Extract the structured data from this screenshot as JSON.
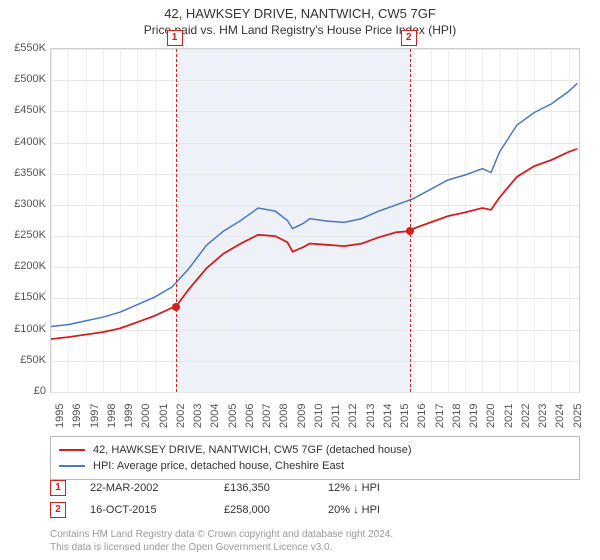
{
  "title": {
    "address": "42, HAWKSEY DRIVE, NANTWICH, CW5 7GF",
    "subtitle": "Price paid vs. HM Land Registry's House Price Index (HPI)"
  },
  "chart": {
    "type": "line",
    "background_color": "#ffffff",
    "grid_color": "#e8e8e8",
    "shaded_color": "#eef2f8",
    "border_color": "#d0d0d0",
    "x_range": [
      1995,
      2025.6
    ],
    "y_range": [
      0,
      550000
    ],
    "y_ticks": [
      0,
      50000,
      100000,
      150000,
      200000,
      250000,
      300000,
      350000,
      400000,
      450000,
      500000,
      550000
    ],
    "y_tick_labels": [
      "£0",
      "£50K",
      "£100K",
      "£150K",
      "£200K",
      "£250K",
      "£300K",
      "£350K",
      "£400K",
      "£450K",
      "£500K",
      "£550K"
    ],
    "x_ticks": [
      1995,
      1996,
      1997,
      1998,
      1999,
      2000,
      2001,
      2002,
      2003,
      2004,
      2005,
      2006,
      2007,
      2008,
      2009,
      2010,
      2011,
      2012,
      2013,
      2014,
      2015,
      2016,
      2017,
      2018,
      2019,
      2020,
      2021,
      2022,
      2023,
      2024,
      2025
    ],
    "label_fontsize": 11,
    "label_color": "#555555",
    "shaded_band": {
      "x_start": 2002.22,
      "x_end": 2015.79
    },
    "series": [
      {
        "name": "property",
        "label": "42, HAWKSEY DRIVE, NANTWICH, CW5 7GF (detached house)",
        "color": "#d21f1f",
        "line_width": 1.8,
        "points": [
          [
            1995,
            85000
          ],
          [
            1996,
            88000
          ],
          [
            1997,
            92000
          ],
          [
            1998,
            96000
          ],
          [
            1999,
            102000
          ],
          [
            2000,
            112000
          ],
          [
            2001,
            122000
          ],
          [
            2002,
            135000
          ],
          [
            2002.22,
            136350
          ],
          [
            2003,
            165000
          ],
          [
            2004,
            198000
          ],
          [
            2005,
            222000
          ],
          [
            2006,
            238000
          ],
          [
            2007,
            252000
          ],
          [
            2008,
            250000
          ],
          [
            2008.7,
            240000
          ],
          [
            2009,
            225000
          ],
          [
            2009.6,
            232000
          ],
          [
            2010,
            238000
          ],
          [
            2011,
            236000
          ],
          [
            2012,
            234000
          ],
          [
            2013,
            238000
          ],
          [
            2014,
            248000
          ],
          [
            2015,
            256000
          ],
          [
            2015.79,
            258000
          ],
          [
            2016,
            262000
          ],
          [
            2017,
            272000
          ],
          [
            2018,
            282000
          ],
          [
            2019,
            288000
          ],
          [
            2020,
            295000
          ],
          [
            2020.5,
            292000
          ],
          [
            2021,
            312000
          ],
          [
            2022,
            345000
          ],
          [
            2023,
            362000
          ],
          [
            2024,
            372000
          ],
          [
            2025,
            385000
          ],
          [
            2025.5,
            390000
          ]
        ]
      },
      {
        "name": "hpi",
        "label": "HPI: Average price, detached house, Cheshire East",
        "color": "#4a77c4",
        "line_width": 1.5,
        "points": [
          [
            1995,
            105000
          ],
          [
            1996,
            108000
          ],
          [
            1997,
            114000
          ],
          [
            1998,
            120000
          ],
          [
            1999,
            128000
          ],
          [
            2000,
            140000
          ],
          [
            2001,
            152000
          ],
          [
            2002,
            168000
          ],
          [
            2003,
            198000
          ],
          [
            2004,
            235000
          ],
          [
            2005,
            258000
          ],
          [
            2006,
            275000
          ],
          [
            2007,
            295000
          ],
          [
            2008,
            290000
          ],
          [
            2008.7,
            275000
          ],
          [
            2009,
            262000
          ],
          [
            2009.6,
            270000
          ],
          [
            2010,
            278000
          ],
          [
            2011,
            274000
          ],
          [
            2012,
            272000
          ],
          [
            2013,
            278000
          ],
          [
            2014,
            290000
          ],
          [
            2015,
            300000
          ],
          [
            2016,
            310000
          ],
          [
            2017,
            325000
          ],
          [
            2018,
            340000
          ],
          [
            2019,
            348000
          ],
          [
            2020,
            358000
          ],
          [
            2020.5,
            352000
          ],
          [
            2021,
            385000
          ],
          [
            2022,
            428000
          ],
          [
            2023,
            448000
          ],
          [
            2024,
            462000
          ],
          [
            2025,
            482000
          ],
          [
            2025.5,
            495000
          ]
        ]
      }
    ],
    "sale_markers": [
      {
        "num": "1",
        "x": 2002.22,
        "y": 136350
      },
      {
        "num": "2",
        "x": 2015.79,
        "y": 258000
      }
    ]
  },
  "legend": {
    "border_color": "#bcbcbc",
    "fontsize": 11
  },
  "sales": [
    {
      "num": "1",
      "date": "22-MAR-2002",
      "price": "£136,350",
      "hpi_diff": "12% ↓ HPI"
    },
    {
      "num": "2",
      "date": "16-OCT-2015",
      "price": "£258,000",
      "hpi_diff": "20% ↓ HPI"
    }
  ],
  "footer": {
    "line1": "Contains HM Land Registry data © Crown copyright and database right 2024.",
    "line2": "This data is licensed under the Open Government Licence v3.0."
  },
  "colors": {
    "marker_border": "#d21f1f",
    "footer_text": "#999999"
  }
}
